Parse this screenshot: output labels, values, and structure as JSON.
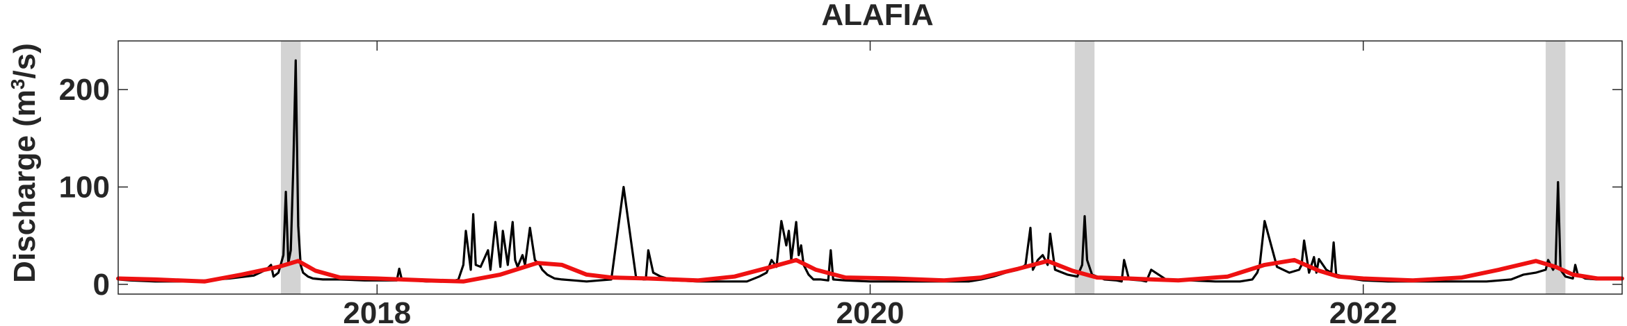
{
  "chart_data": {
    "type": "line",
    "title": "ALAFIA",
    "xlabel": "",
    "ylabel": "Discharge (m³/s)",
    "ylabel_parts": {
      "base": "Discharge (m",
      "sup": "3",
      "tail": "/s)"
    },
    "xlim": [
      2016.95,
      2023.05
    ],
    "ylim": [
      -10,
      250
    ],
    "xticks": [
      2018,
      2020,
      2022
    ],
    "xtick_labels": [
      "2018",
      "2020",
      "2022"
    ],
    "yticks": [
      0,
      100,
      200
    ],
    "ytick_labels": [
      "0",
      "100",
      "200"
    ],
    "grid": false,
    "legend": "none",
    "highlight_bands": [
      [
        2017.61,
        2017.69
      ],
      [
        2020.83,
        2020.91
      ],
      [
        2022.74,
        2022.82
      ]
    ],
    "series": [
      {
        "role": "daily-discharge",
        "color": "#000000",
        "x": [
          2016.95,
          2017.0,
          2017.1,
          2017.2,
          2017.3,
          2017.4,
          2017.5,
          2017.55,
          2017.57,
          2017.58,
          2017.6,
          2017.62,
          2017.63,
          2017.64,
          2017.65,
          2017.66,
          2017.67,
          2017.68,
          2017.69,
          2017.7,
          2017.72,
          2017.74,
          2017.78,
          2017.85,
          2017.95,
          2018.08,
          2018.09,
          2018.1,
          2018.2,
          2018.3,
          2018.33,
          2018.35,
          2018.36,
          2018.38,
          2018.39,
          2018.4,
          2018.42,
          2018.45,
          2018.46,
          2018.48,
          2018.5,
          2018.51,
          2018.53,
          2018.55,
          2018.56,
          2018.57,
          2018.59,
          2018.6,
          2018.62,
          2018.64,
          2018.66,
          2018.67,
          2018.69,
          2018.72,
          2018.75,
          2018.8,
          2018.85,
          2018.9,
          2018.95,
          2019.0,
          2019.05,
          2019.08,
          2019.09,
          2019.1,
          2019.12,
          2019.15,
          2019.19,
          2019.2,
          2019.22,
          2019.3,
          2019.4,
          2019.5,
          2019.55,
          2019.58,
          2019.6,
          2019.62,
          2019.64,
          2019.66,
          2019.67,
          2019.68,
          2019.7,
          2019.71,
          2019.72,
          2019.73,
          2019.75,
          2019.77,
          2019.8,
          2019.83,
          2019.84,
          2019.85,
          2019.9,
          2020.0,
          2020.1,
          2020.2,
          2020.3,
          2020.4,
          2020.45,
          2020.5,
          2020.55,
          2020.6,
          2020.63,
          2020.65,
          2020.66,
          2020.68,
          2020.7,
          2020.72,
          2020.73,
          2020.75,
          2020.8,
          2020.84,
          2020.86,
          2020.87,
          2020.88,
          2020.9,
          2020.95,
          2021.0,
          2021.02,
          2021.03,
          2021.05,
          2021.1,
          2021.12,
          2021.14,
          2021.2,
          2021.3,
          2021.4,
          2021.5,
          2021.55,
          2021.57,
          2021.58,
          2021.6,
          2021.65,
          2021.7,
          2021.74,
          2021.75,
          2021.76,
          2021.78,
          2021.8,
          2021.81,
          2021.82,
          2021.85,
          2021.87,
          2021.88,
          2021.89,
          2021.95,
          2022.0,
          2022.1,
          2022.2,
          2022.3,
          2022.4,
          2022.5,
          2022.6,
          2022.65,
          2022.7,
          2022.74,
          2022.75,
          2022.77,
          2022.78,
          2022.79,
          2022.8,
          2022.82,
          2022.85,
          2022.86,
          2022.87,
          2022.9,
          2022.95,
          2023.0,
          2023.05
        ],
        "y": [
          5,
          4,
          3,
          3,
          4,
          6,
          9,
          15,
          20,
          8,
          12,
          30,
          95,
          22,
          35,
          120,
          230,
          60,
          20,
          12,
          8,
          6,
          5,
          5,
          4,
          4,
          16,
          5,
          3,
          3,
          5,
          20,
          55,
          15,
          72,
          20,
          18,
          35,
          15,
          64,
          18,
          55,
          20,
          64,
          25,
          18,
          30,
          20,
          58,
          25,
          20,
          15,
          10,
          6,
          5,
          4,
          3,
          4,
          5,
          100,
          8,
          5,
          5,
          35,
          12,
          8,
          5,
          4,
          4,
          3,
          3,
          3,
          8,
          12,
          25,
          18,
          65,
          40,
          55,
          25,
          64,
          30,
          40,
          20,
          10,
          5,
          5,
          4,
          35,
          5,
          4,
          3,
          3,
          3,
          3,
          3,
          5,
          8,
          12,
          15,
          20,
          58,
          15,
          25,
          30,
          20,
          52,
          15,
          10,
          8,
          20,
          70,
          25,
          10,
          5,
          4,
          3,
          25,
          5,
          4,
          3,
          15,
          5,
          4,
          3,
          3,
          5,
          12,
          20,
          65,
          18,
          12,
          15,
          20,
          45,
          12,
          28,
          12,
          26,
          15,
          12,
          43,
          10,
          6,
          4,
          3,
          3,
          3,
          3,
          3,
          5,
          10,
          12,
          15,
          25,
          15,
          20,
          105,
          15,
          8,
          6,
          20,
          10,
          6,
          5,
          5,
          5
        ]
      },
      {
        "role": "smoothed-discharge",
        "color": "#ee1111",
        "x": [
          2016.95,
          2017.1,
          2017.3,
          2017.45,
          2017.6,
          2017.68,
          2017.75,
          2017.85,
          2018.0,
          2018.2,
          2018.35,
          2018.5,
          2018.65,
          2018.75,
          2018.85,
          2018.95,
          2019.1,
          2019.3,
          2019.45,
          2019.6,
          2019.7,
          2019.78,
          2019.9,
          2020.1,
          2020.3,
          2020.45,
          2020.6,
          2020.72,
          2020.82,
          2020.92,
          2021.05,
          2021.25,
          2021.45,
          2021.6,
          2021.72,
          2021.82,
          2021.9,
          2022.0,
          2022.2,
          2022.4,
          2022.55,
          2022.7,
          2022.78,
          2022.85,
          2022.95,
          2023.05
        ],
        "y": [
          6,
          5,
          3,
          10,
          18,
          24,
          14,
          7,
          6,
          4,
          3,
          10,
          22,
          20,
          10,
          7,
          6,
          4,
          8,
          18,
          25,
          15,
          7,
          6,
          4,
          7,
          16,
          24,
          14,
          7,
          6,
          4,
          8,
          20,
          25,
          14,
          8,
          6,
          4,
          7,
          15,
          24,
          18,
          10,
          6,
          6
        ]
      }
    ]
  }
}
